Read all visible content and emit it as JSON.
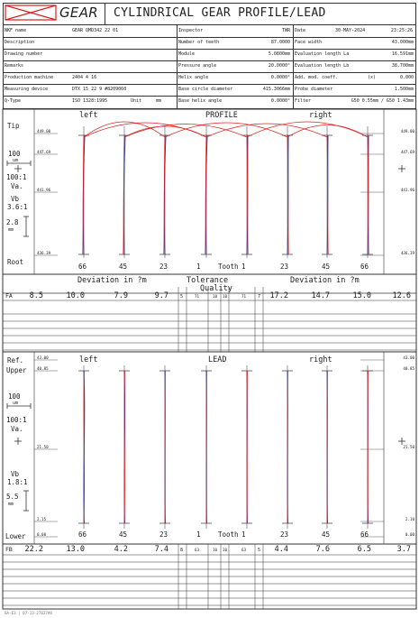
{
  "header": {
    "logo_text": "GEAR",
    "title": "CYLINDRICAL GEAR PROFILE/LEAD",
    "rows": [
      {
        "l1": "NKF name",
        "v1": "GEAR QMD342 22 01",
        "l2": "Inspector",
        "v2": "TWR",
        "l3": "Date",
        "v3": "30-MAY-2024",
        "v3b": "23:25:26"
      },
      {
        "l1": "Description",
        "v1": "",
        "l2": "Number of teeth",
        "v2": "87.0000",
        "l3": "Face width",
        "v3": "43.000mm",
        "v3b": ""
      },
      {
        "l1": "Drawing number",
        "v1": "",
        "l2": "Module",
        "v2": "5.0800mm",
        "l3": "Evaluation length La",
        "v3": "16.591mm",
        "v3b": ""
      },
      {
        "l1": "Remarks",
        "v1": "",
        "l2": "Pressure angle",
        "v2": "20.0000°",
        "l3": "Evaluation length Lb",
        "v3": "38.700mm",
        "v3b": ""
      },
      {
        "l1": "Production machine",
        "v1": "2404 4 16",
        "l2": "Helix angle",
        "v2": "0.0000°",
        "l3": "Add. mod. coeff.",
        "v3": "0.000",
        "v3b": "(x)"
      },
      {
        "l1": "Measuring device",
        "v1": "DTX 15 22  9 #8209060",
        "l2": "Base circle diameter",
        "v2": "415.3066mm",
        "l3": "Probe diameter",
        "v3": "1.500mm",
        "v3b": ""
      },
      {
        "l1": "Q-Type",
        "v1": "ISO 1328:1995",
        "v1b": "Unit",
        "v1c": "mm",
        "l2": "Base helix angle",
        "v2": "0.0000°",
        "l3": "Filter",
        "v3": "G50  0.55mm / G50  1.43mm",
        "v3b": ""
      }
    ]
  },
  "profile": {
    "left_label": "left",
    "center_label": "PROFILE",
    "right_label": "right",
    "side": {
      "tip": "Tip",
      "scale_val": "100",
      "scale_unit": "um",
      "ratio": "100:1",
      "va": "Va.",
      "vb": "Vb",
      "vb_ratio": "3.6:1",
      "mm_val": "2.8",
      "mm_unit": "mm",
      "root": "Root"
    },
    "axis_left": [
      "449.00",
      "447.69",
      "441.96",
      "436.39"
    ],
    "axis_right": [
      "449.00",
      "447.69",
      "441.96",
      "436.39"
    ],
    "tooth_labels": [
      "66",
      "45",
      "23",
      "1",
      "Tooth",
      "1",
      "23",
      "45",
      "66"
    ],
    "table": {
      "head_left": "Deviation in ?m",
      "head_mid": "Tolerance",
      "head_quality": "Quality",
      "head_right": "Deviation in ?m",
      "quality_vals": [
        "71",
        "10",
        "10",
        "71"
      ],
      "row_label": "FA",
      "left_vals": [
        "8.5",
        "10.0",
        "7.9",
        "9.7"
      ],
      "mid_vals": [
        "5",
        "7"
      ],
      "right_vals": [
        "17.2",
        "14.7",
        "15.0",
        "12.6"
      ]
    }
  },
  "lead": {
    "ref": "Ref.",
    "upper": "Upper",
    "left_label": "left",
    "center_label": "LEAD",
    "right_label": "right",
    "side": {
      "scale_val": "100",
      "scale_unit": "um",
      "ratio": "100:1",
      "va": "Va.",
      "vb": "Vb",
      "vb_ratio": "1.8:1",
      "mm_val": "5.5",
      "mm_unit": "mm",
      "lower": "Lower"
    },
    "axis_left": [
      "43.00",
      "40.85",
      "21.50",
      "2.15",
      "0.00"
    ],
    "axis_right": [
      "43.00",
      "40.85",
      "21.50",
      "2.10",
      "0.00"
    ],
    "tooth_labels": [
      "66",
      "45",
      "23",
      "1",
      "Tooth",
      "1",
      "23",
      "45",
      "66"
    ],
    "table": {
      "row_label": "FB",
      "left_vals": [
        "22.2",
        "13.0",
        "4.2",
        "7.4"
      ],
      "quality_vals": [
        "63",
        "10",
        "10",
        "63"
      ],
      "mid_vals": [
        "8",
        "5"
      ],
      "right_vals": [
        "4.4",
        "7.6",
        "6.5",
        "3.7"
      ]
    }
  },
  "footer": {
    "text": "8A-E3 | 07-13-27827#8"
  },
  "colors": {
    "trace_red": "#e02020",
    "trace_blue": "#2a3aa8",
    "logo_red": "#d82020",
    "line": "#333333"
  }
}
